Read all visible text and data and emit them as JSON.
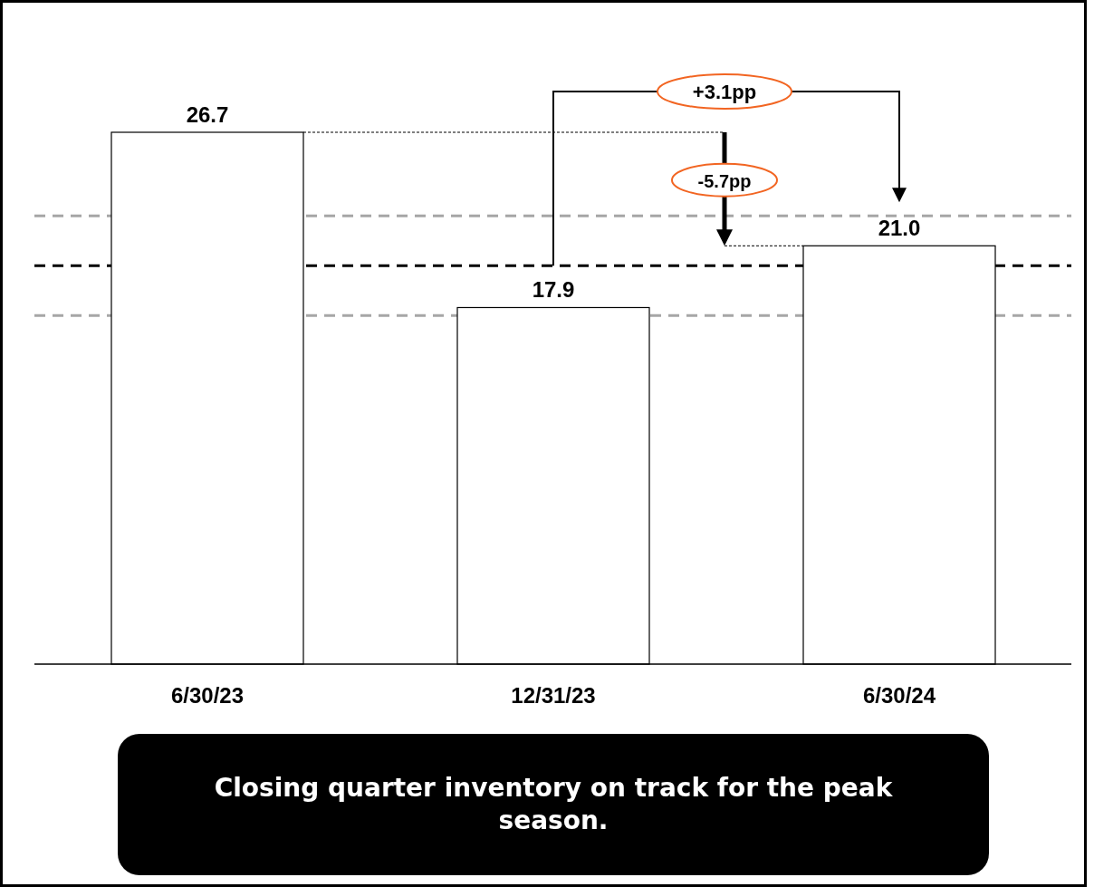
{
  "chart_data": {
    "type": "bar",
    "categories": [
      "6/30/23",
      "12/31/23",
      "6/30/24"
    ],
    "values": [
      26.7,
      17.9,
      21.0
    ],
    "color": "#ffffff",
    "value_labels": [
      "26.7",
      "17.9",
      "21.0"
    ],
    "tick_labels": "x",
    "ref_lines": [
      {
        "axis": "y",
        "value": 22.5,
        "color": "#a6a6a6",
        "line_style": "dashed"
      },
      {
        "axis": "y",
        "value": 20,
        "color": "#000000",
        "line_style": "dashed"
      },
      {
        "axis": "y",
        "value": 17.5,
        "color": "#a6a6a6",
        "line_style": "dashed"
      }
    ],
    "annotations": [
      "+3.1pp",
      "-5.7pp",
      "Closing quarter inventory on track for the peak season."
    ]
  }
}
